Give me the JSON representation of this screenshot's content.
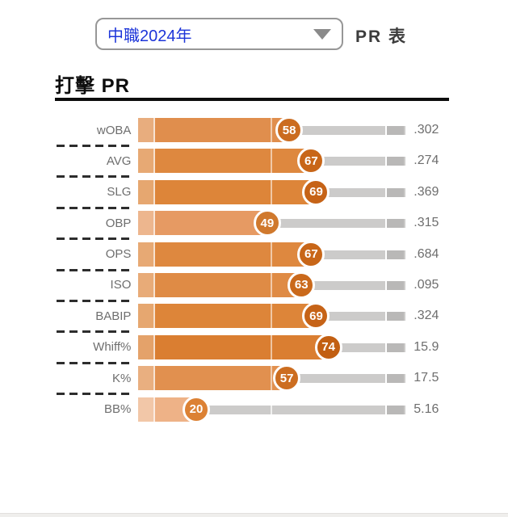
{
  "header": {
    "dropdown_value": "中職2024年",
    "pr_table_label": "PR 表"
  },
  "icons": {
    "dropdown_arrow": "triangle-down"
  },
  "title": "打擊 PR",
  "chart_data": {
    "type": "bar",
    "title": "打擊 PR",
    "orientation": "horizontal",
    "xlim": [
      0,
      100
    ],
    "legend": "none",
    "rows": [
      {
        "label": "wOBA",
        "pr": 58,
        "value": ".302",
        "bar_color": "#e08e4d",
        "circle_color": "#cb6c20"
      },
      {
        "label": "AVG",
        "pr": 67,
        "value": ".274",
        "bar_color": "#de883f",
        "circle_color": "#c86618"
      },
      {
        "label": "SLG",
        "pr": 69,
        "value": ".369",
        "bar_color": "#dd8539",
        "circle_color": "#c66317"
      },
      {
        "label": "OBP",
        "pr": 49,
        "value": ".315",
        "bar_color": "#e69a63",
        "circle_color": "#d0792d"
      },
      {
        "label": "OPS",
        "pr": 67,
        "value": ".684",
        "bar_color": "#de883f",
        "circle_color": "#c86618"
      },
      {
        "label": "ISO",
        "pr": 63,
        "value": ".095",
        "bar_color": "#df8b45",
        "circle_color": "#ca691b"
      },
      {
        "label": "BABIP",
        "pr": 69,
        "value": ".324",
        "bar_color": "#dd8539",
        "circle_color": "#c66317"
      },
      {
        "label": "Whiff%",
        "pr": 74,
        "value": "15.9",
        "bar_color": "#da7e31",
        "circle_color": "#c25f12"
      },
      {
        "label": "K%",
        "pr": 57,
        "value": "17.5",
        "bar_color": "#e1904f",
        "circle_color": "#cc6d20"
      },
      {
        "label": "BB%",
        "pr": 20,
        "value": "5.16",
        "bar_color": "#eeb287",
        "circle_color": "#dc8134"
      }
    ]
  }
}
